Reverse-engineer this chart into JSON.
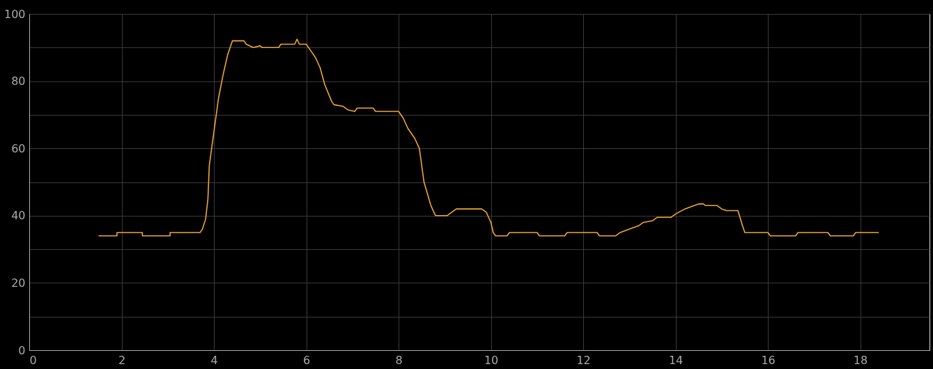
{
  "chart_data": {
    "type": "line",
    "xlim": [
      0,
      19.5
    ],
    "ylim": [
      0,
      100
    ],
    "xticks": [
      0,
      2,
      4,
      6,
      8,
      10,
      12,
      14,
      16,
      18
    ],
    "yticks": [
      0,
      {
        "value": 10,
        "label": null
      },
      20,
      {
        "value": 30,
        "label": null
      },
      40,
      {
        "value": 50,
        "label": null
      },
      60,
      {
        "value": 70,
        "label": null
      },
      80,
      {
        "value": 90,
        "label": null
      },
      100
    ],
    "grid": true,
    "marker": "none",
    "line_style": "solid",
    "series": [
      {
        "color": "#f0a830",
        "x": [
          1.5,
          1.9,
          1.9,
          2.45,
          2.45,
          3.05,
          3.05,
          3.7,
          3.75,
          3.82,
          3.87,
          3.9,
          4.0,
          4.1,
          4.2,
          4.3,
          4.4,
          4.65,
          4.7,
          4.85,
          5.0,
          5.05,
          5.4,
          5.45,
          5.75,
          5.8,
          5.85,
          6.0,
          6.1,
          6.2,
          6.3,
          6.4,
          6.55,
          6.6,
          6.8,
          6.9,
          7.05,
          7.1,
          7.45,
          7.5,
          8.0,
          8.1,
          8.2,
          8.35,
          8.45,
          8.55,
          8.7,
          8.8,
          9.05,
          9.15,
          9.25,
          9.8,
          9.9,
          10.0,
          10.05,
          10.1,
          10.35,
          10.4,
          11.0,
          11.05,
          11.6,
          11.65,
          12.3,
          12.35,
          12.7,
          12.8,
          13.0,
          13.2,
          13.3,
          13.5,
          13.6,
          13.9,
          14.0,
          14.2,
          14.4,
          14.5,
          14.6,
          14.65,
          14.9,
          15.0,
          15.1,
          15.35,
          15.45,
          15.5,
          16.0,
          16.05,
          16.6,
          16.65,
          17.3,
          17.35,
          17.85,
          17.9,
          18.4
        ],
        "values": [
          34,
          34,
          35,
          35,
          34,
          34,
          35,
          35,
          36,
          39,
          45,
          55,
          65,
          75,
          82,
          88,
          92,
          92,
          91,
          90,
          90.5,
          90,
          90,
          91,
          91,
          92.5,
          91,
          91,
          89,
          87,
          84,
          79,
          74,
          73,
          72.5,
          71.5,
          71,
          72,
          72,
          71,
          71,
          69,
          66,
          63,
          60,
          50,
          43,
          40,
          40,
          41,
          42,
          42,
          41,
          38,
          35,
          34,
          34,
          35,
          35,
          34,
          34,
          35,
          35,
          34,
          34,
          35,
          36,
          37,
          38,
          38.5,
          39.5,
          39.5,
          40.5,
          42,
          43,
          43.5,
          43.5,
          43,
          43,
          42,
          41.5,
          41.5,
          37,
          35,
          35,
          34,
          34,
          35,
          35,
          34,
          34,
          35,
          35
        ]
      }
    ]
  }
}
